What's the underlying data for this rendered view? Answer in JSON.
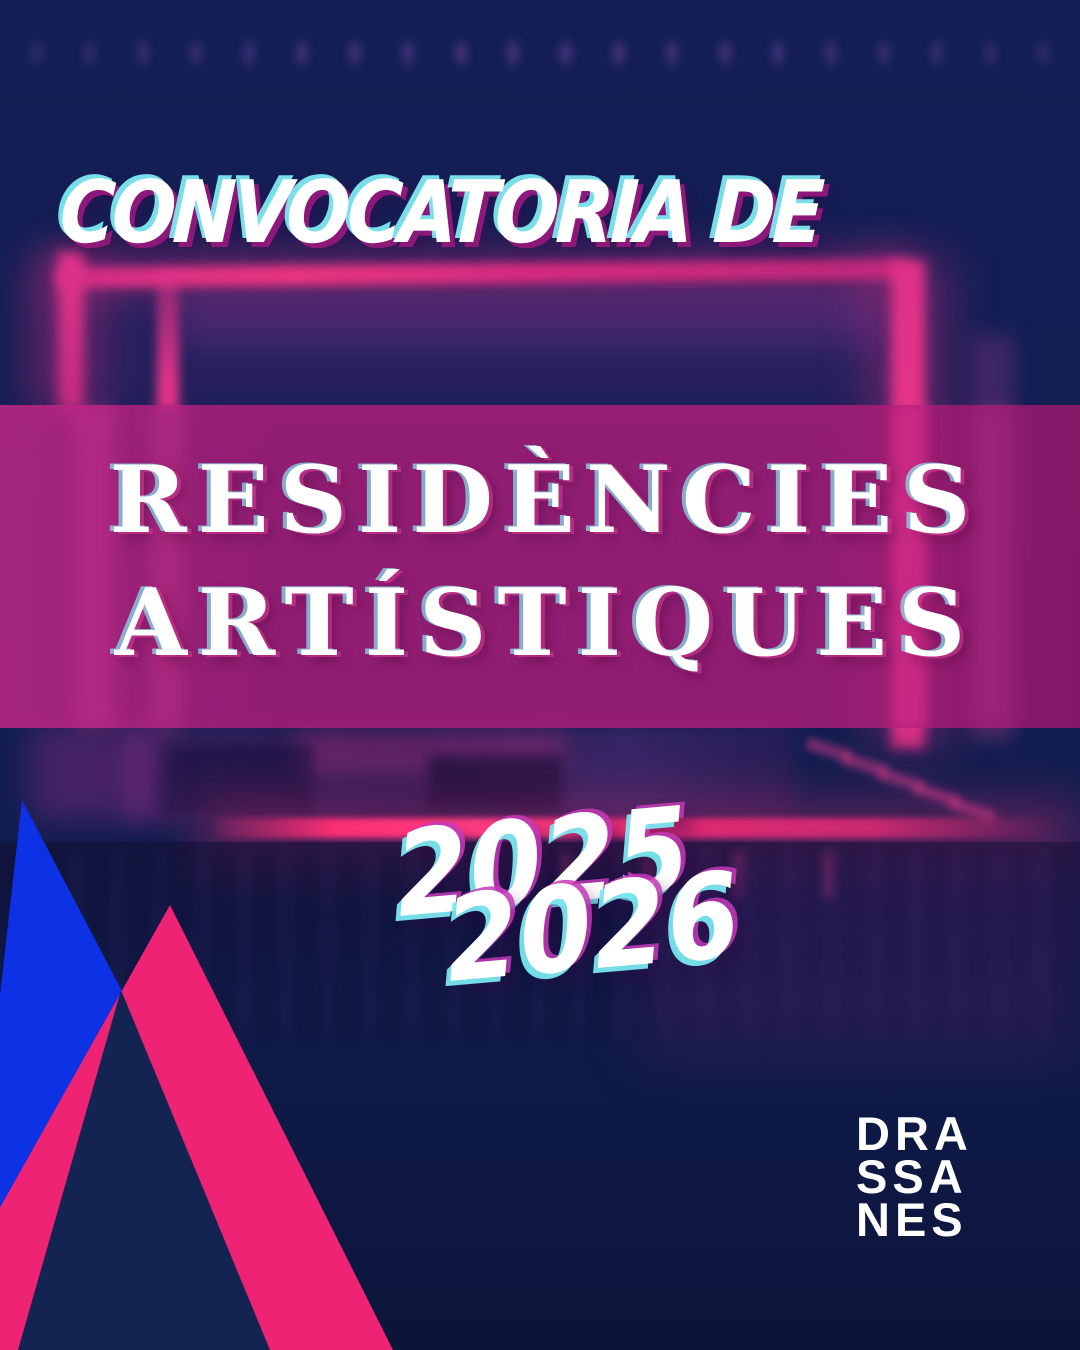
{
  "poster": {
    "kicker": "CONVOCATORIA DE",
    "title": {
      "line1": "RESIDÈNCIES",
      "line2": "ARTÍSTIQUES"
    },
    "years": {
      "first": "2025",
      "second": "2026"
    },
    "logo": {
      "line1": "DRA",
      "line2": "SSA",
      "line3": "NES"
    },
    "colors": {
      "background_navy": "#111F52",
      "band_magenta": "#96216B",
      "accent_pink": "#EE2374",
      "accent_blue": "#0D31E4",
      "neon_pink_glow": "#E63488",
      "glitch_cyan": "#7FE8EF",
      "glitch_magenta": "#C43AB8",
      "text_white": "#FFFFFF"
    }
  }
}
